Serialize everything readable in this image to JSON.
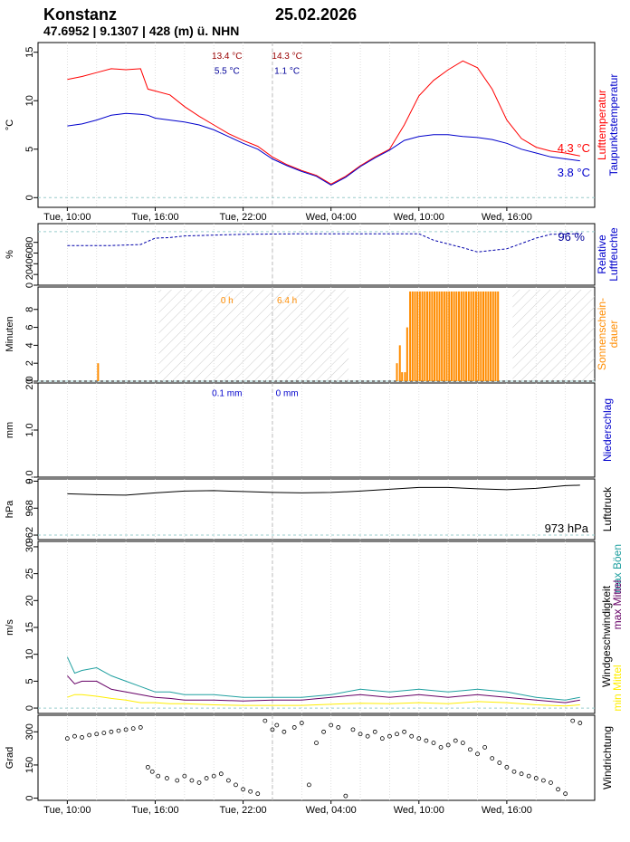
{
  "header": {
    "station": "Konstanz",
    "date": "25.02.2026",
    "coords": "47.6952 | 9.1307 | 428 (m) ü. NHN"
  },
  "time_axis": {
    "labels": [
      "Tue, 10:00",
      "Tue, 16:00",
      "Tue, 22:00",
      "Wed, 04:00",
      "Wed, 10:00",
      "Wed, 16:00"
    ],
    "range_hours": [
      -2,
      36
    ],
    "day_break_hour": 14
  },
  "chart_data": [
    {
      "type": "line",
      "name": "temperature",
      "ylabel": "°C",
      "ylim": [
        -1,
        16
      ],
      "yticks": [
        "0",
        "5",
        "10",
        "15"
      ],
      "legend": [
        "Lufttemperatur",
        "Taupunktstemperatur"
      ],
      "colors": {
        "air": "#ff0000",
        "dew": "#0000cc"
      },
      "x_hours": [
        0,
        1,
        2,
        3,
        4,
        5,
        5.5,
        6,
        7,
        8,
        9,
        10,
        11,
        12,
        13,
        14,
        15,
        16,
        17,
        18,
        19,
        20,
        21,
        22,
        23,
        24,
        25,
        26,
        27,
        28,
        29,
        30,
        31,
        32,
        33,
        34,
        35
      ],
      "series": [
        {
          "name": "Lufttemperatur",
          "values": [
            12.2,
            12.5,
            12.9,
            13.3,
            13.2,
            13.3,
            11.2,
            11.0,
            10.6,
            9.4,
            8.4,
            7.5,
            6.6,
            5.9,
            5.3,
            4.2,
            3.4,
            2.8,
            2.3,
            1.4,
            2.2,
            3.3,
            4.2,
            5.0,
            7.5,
            10.5,
            12.1,
            13.2,
            14.1,
            13.4,
            11.2,
            8.0,
            6.1,
            5.2,
            4.8,
            4.6,
            4.3
          ]
        },
        {
          "name": "Taupunktstemperatur",
          "values": [
            7.4,
            7.6,
            8.0,
            8.5,
            8.7,
            8.6,
            8.5,
            8.2,
            8.0,
            7.8,
            7.5,
            7.0,
            6.3,
            5.6,
            5.0,
            4.0,
            3.3,
            2.7,
            2.2,
            1.3,
            2.1,
            3.2,
            4.1,
            4.9,
            5.9,
            6.3,
            6.5,
            6.5,
            6.3,
            6.2,
            6.0,
            5.6,
            5.0,
            4.6,
            4.2,
            4.0,
            3.8
          ]
        }
      ],
      "annotations": [
        {
          "text": "13.4 °C",
          "color": "#990000",
          "x_hour": 10.9,
          "y": 14.3
        },
        {
          "text": "5.5 °C",
          "color": "#000099",
          "x_hour": 10.9,
          "y": 12.8
        },
        {
          "text": "14.3 °C",
          "color": "#990000",
          "x_hour": 15.0,
          "y": 14.3
        },
        {
          "text": "1.1 °C",
          "color": "#000099",
          "x_hour": 15.0,
          "y": 12.8
        }
      ],
      "last_labels": [
        {
          "text": "4.3 °C",
          "color": "#ff0000"
        },
        {
          "text": "3.8 °C",
          "color": "#0000cc"
        }
      ]
    },
    {
      "type": "line",
      "name": "humidity",
      "ylabel": "%",
      "ylim": [
        0,
        115
      ],
      "yticks": [
        "0",
        "20",
        "40",
        "60",
        "80"
      ],
      "legend": [
        "Relative",
        "Luftfeuchte"
      ],
      "color": "#0000aa",
      "x_hours": [
        0,
        3,
        5,
        6,
        7,
        8,
        12,
        16,
        20,
        24,
        25,
        27,
        28,
        30,
        32,
        33,
        35
      ],
      "values": [
        74,
        74,
        76,
        88,
        89,
        92,
        95,
        96,
        96,
        96,
        84,
        70,
        62,
        68,
        88,
        95,
        96
      ],
      "last_label": "96 %"
    },
    {
      "type": "bar",
      "name": "sunshine",
      "ylabel": "Minuten",
      "ylim": [
        0,
        10.5
      ],
      "yticks": [
        "0",
        "2",
        "4",
        "6",
        "8"
      ],
      "legend": [
        "Sonnenschein-",
        "dauer"
      ],
      "color": "#ff8c00",
      "night_hours": [
        [
          6.25,
          19.2
        ],
        [
          30.4,
          36
        ]
      ],
      "bars_hours": [
        2.1,
        22.5,
        22.7,
        22.85,
        23.05,
        23.2
      ],
      "bars_values": [
        2,
        2,
        4,
        1,
        1,
        6
      ],
      "full_bars_range_hours": [
        23.4,
        29.4
      ],
      "full_bars_value": 10,
      "annotations": [
        {
          "text": "0 h",
          "x_hour": 10.9,
          "y": 8.7
        },
        {
          "text": "6.4 h",
          "x_hour": 15.0,
          "y": 8.7
        }
      ]
    },
    {
      "type": "bar",
      "name": "precipitation",
      "ylabel": "mm",
      "ylim": [
        0,
        2
      ],
      "yticks": [
        "0.0",
        "1.0",
        "2.0"
      ],
      "legend": [
        "Niederschlag"
      ],
      "color": "#0000cc",
      "annotations": [
        {
          "text": "0.1 mm",
          "x_hour": 10.9,
          "y": 1.72
        },
        {
          "text": "0 mm",
          "x_hour": 15.0,
          "y": 1.72
        }
      ]
    },
    {
      "type": "line",
      "name": "pressure",
      "ylabel": "hPa",
      "ylim": [
        961,
        974.5
      ],
      "yticks": [
        "962",
        "968",
        "9"
      ],
      "legend": [
        "Luftdruck"
      ],
      "color": "#000000",
      "x_hours": [
        0,
        2,
        4,
        6,
        8,
        10,
        12,
        14,
        16,
        18,
        20,
        22,
        24,
        26,
        28,
        30,
        32,
        34,
        35
      ],
      "values": [
        971.2,
        971.0,
        970.9,
        971.4,
        971.8,
        971.9,
        971.7,
        971.5,
        971.4,
        971.5,
        971.8,
        972.2,
        972.6,
        972.6,
        972.3,
        972.1,
        972.4,
        973.0,
        973.1
      ],
      "last_label": "973 hPa"
    },
    {
      "type": "line",
      "name": "wind",
      "ylabel": "m/s",
      "ylim": [
        -1,
        31
      ],
      "yticks": [
        "0",
        "5",
        "10",
        "15",
        "20",
        "25",
        "30"
      ],
      "legend": [
        "Windgeschwindigkeit",
        "max Böen",
        "max Mittel",
        "min Mittel"
      ],
      "colors": {
        "gust": "#20a0a0",
        "max": "#660066",
        "min": "#ffee00"
      },
      "x_hours": [
        0,
        0.5,
        1,
        2,
        3,
        4,
        5,
        6,
        7,
        8,
        10,
        12,
        14,
        16,
        18,
        20,
        22,
        24,
        26,
        28,
        30,
        32,
        34,
        35
      ],
      "series": [
        {
          "name": "max Böen",
          "values": [
            9.5,
            6.5,
            7.0,
            7.5,
            6.0,
            5.0,
            4.0,
            3.0,
            3.0,
            2.5,
            2.5,
            2.0,
            2.0,
            2.0,
            2.5,
            3.5,
            3.0,
            3.5,
            3.0,
            3.5,
            3.0,
            2.0,
            1.5,
            2.0
          ]
        },
        {
          "name": "max Mittel",
          "values": [
            6.0,
            4.5,
            5.0,
            5.0,
            3.5,
            3.0,
            2.5,
            2.0,
            1.8,
            1.5,
            1.5,
            1.3,
            1.5,
            1.5,
            2.0,
            2.5,
            2.0,
            2.5,
            2.0,
            2.5,
            2.0,
            1.5,
            1.0,
            1.5
          ]
        },
        {
          "name": "min Mittel",
          "values": [
            2.0,
            2.5,
            2.5,
            2.2,
            1.8,
            1.5,
            1.0,
            1.0,
            0.8,
            0.8,
            0.6,
            0.5,
            0.5,
            0.5,
            0.7,
            0.9,
            0.8,
            1.0,
            0.8,
            1.2,
            1.0,
            0.6,
            0.4,
            0.6
          ]
        }
      ]
    },
    {
      "type": "scatter",
      "name": "direction",
      "ylabel": "Grad",
      "ylim": [
        -10,
        375
      ],
      "yticks": [
        "0",
        "150",
        "300"
      ],
      "legend": [
        "Windrichtung"
      ],
      "x_hours": [
        0,
        0.5,
        1,
        1.5,
        2,
        2.5,
        3,
        3.5,
        4,
        4.5,
        5,
        5.5,
        5.8,
        6.2,
        6.8,
        7.5,
        8,
        8.5,
        9,
        9.5,
        10,
        10.5,
        11,
        11.5,
        12,
        12.5,
        13,
        13.5,
        14,
        14.3,
        14.8,
        15.5,
        16,
        16.5,
        17,
        17.5,
        18,
        18.5,
        19,
        19.5,
        20,
        20.5,
        21,
        21.5,
        22,
        22.5,
        23,
        23.5,
        24,
        24.5,
        25,
        25.5,
        26,
        26.5,
        27,
        27.5,
        28,
        28.5,
        29,
        29.5,
        30,
        30.5,
        31,
        31.5,
        32,
        32.5,
        33,
        33.5,
        34,
        34.5,
        35
      ],
      "values": [
        270,
        280,
        275,
        285,
        290,
        295,
        300,
        305,
        310,
        315,
        320,
        140,
        120,
        100,
        90,
        80,
        100,
        80,
        70,
        90,
        100,
        110,
        80,
        60,
        40,
        30,
        20,
        350,
        310,
        330,
        300,
        320,
        340,
        60,
        250,
        300,
        330,
        320,
        10,
        310,
        290,
        280,
        300,
        270,
        280,
        290,
        300,
        280,
        270,
        260,
        250,
        230,
        240,
        260,
        250,
        220,
        200,
        230,
        180,
        160,
        140,
        120,
        110,
        100,
        90,
        80,
        70,
        40,
        20,
        350,
        340
      ]
    }
  ]
}
